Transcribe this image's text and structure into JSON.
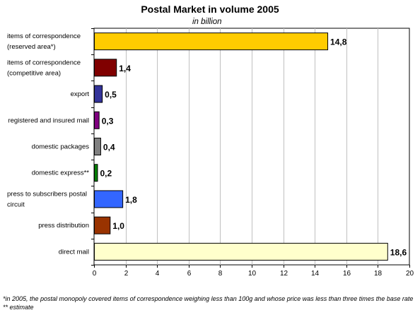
{
  "chart_data": {
    "type": "bar",
    "orientation": "horizontal",
    "title": "Postal Market in volume 2005",
    "subtitle": "in billion",
    "categories": [
      [
        "items of correspondence",
        "(reserved area*)"
      ],
      [
        "items of correspondence",
        "(competitive area)"
      ],
      [
        "export"
      ],
      [
        "registered and insured mail"
      ],
      [
        "domestic packages"
      ],
      [
        "domestic express**"
      ],
      [
        "press to subscribers postal",
        "circuit"
      ],
      [
        "press distribution"
      ],
      [
        "direct mail"
      ]
    ],
    "values": [
      14.8,
      1.4,
      0.5,
      0.3,
      0.4,
      0.2,
      1.8,
      1.0,
      18.6
    ],
    "value_labels": [
      "14,8",
      "1,4",
      "0,5",
      "0,3",
      "0,4",
      "0,2",
      "1,8",
      "1,0",
      "18,6"
    ],
    "colors": [
      "#ffcc00",
      "#800000",
      "#333399",
      "#800080",
      "#808080",
      "#008000",
      "#3366ff",
      "#993300",
      "#ffffcc"
    ],
    "xlim": [
      0,
      20
    ],
    "xticks": [
      0,
      2,
      4,
      6,
      8,
      10,
      12,
      14,
      16,
      18,
      20
    ],
    "grid": true
  },
  "notes": [
    "*in 2005, the postal monopoly covered items of correspondence weighing less than 100g and whose price was less than three times the base rate",
    "** estimate"
  ]
}
